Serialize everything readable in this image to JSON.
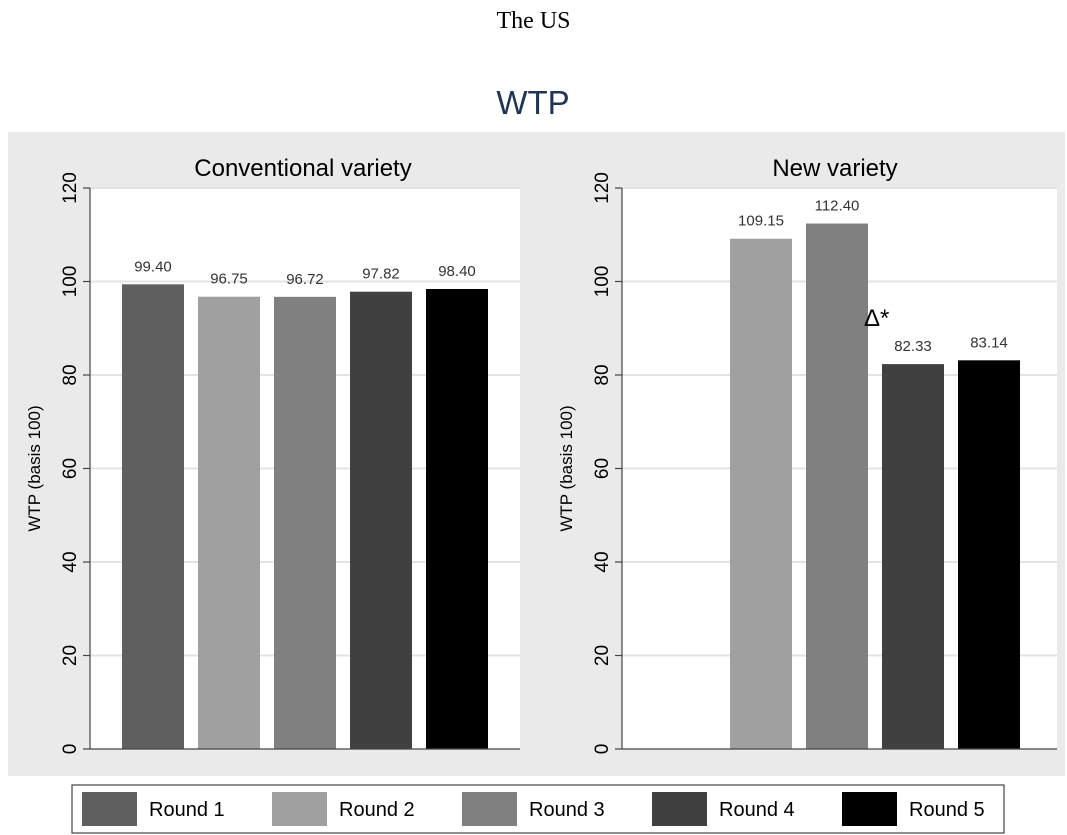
{
  "page": {
    "heading": "The US"
  },
  "colors": {
    "plot_region": "#eaeaea",
    "plot_area": "#ffffff",
    "grid": "#e3e3e3",
    "axis": "#444444",
    "title": "#1f3552",
    "round_1": "#5f5f5f",
    "round_2": "#a0a0a0",
    "round_3": "#808080",
    "round_4": "#404040",
    "round_5": "#000000"
  },
  "chart_data": {
    "type": "bar",
    "title": "WTP",
    "legend": {
      "position": "bottom",
      "entries": [
        "Round 1",
        "Round 2",
        "Round 3",
        "Round 4",
        "Round 5"
      ]
    },
    "panels": [
      {
        "subtitle": "Conventional variety",
        "ylabel": "WTP (basis 100)",
        "ylim": [
          0,
          120
        ],
        "yticks": [
          "0",
          "20",
          "40",
          "60",
          "80",
          "100",
          "120"
        ],
        "series": [
          {
            "name": "Round 1",
            "value": 99.4,
            "label": "99.40"
          },
          {
            "name": "Round 2",
            "value": 96.75,
            "label": "96.75"
          },
          {
            "name": "Round 3",
            "value": 96.72,
            "label": "96.72"
          },
          {
            "name": "Round 4",
            "value": 97.82,
            "label": "97.82"
          },
          {
            "name": "Round 5",
            "value": 98.4,
            "label": "98.40"
          }
        ],
        "annotation": ""
      },
      {
        "subtitle": "New variety",
        "ylabel": "WTP (basis 100)",
        "ylim": [
          0,
          120
        ],
        "yticks": [
          "0",
          "20",
          "40",
          "60",
          "80",
          "100",
          "120"
        ],
        "series": [
          {
            "name": "Round 1",
            "value": null,
            "label": ""
          },
          {
            "name": "Round 2",
            "value": 109.15,
            "label": "109.15"
          },
          {
            "name": "Round 3",
            "value": 112.4,
            "label": "112.40"
          },
          {
            "name": "Round 4",
            "value": 82.33,
            "label": "82.33"
          },
          {
            "name": "Round 5",
            "value": 83.14,
            "label": "83.14"
          }
        ],
        "annotation": "Δ*"
      }
    ]
  }
}
